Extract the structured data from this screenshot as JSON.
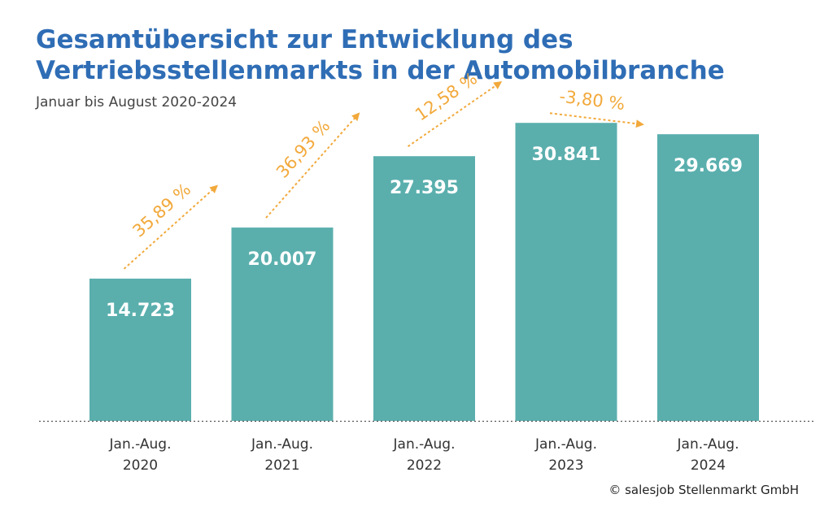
{
  "header": {
    "title_line1": "Gesamtübersicht zur Entwicklung des",
    "title_line2": "Vertriebsstellenmarkts in der Automobilbranche",
    "subtitle": "Januar bis August 2020-2024"
  },
  "footer": {
    "credit": "© salesjob Stellenmarkt GmbH"
  },
  "colors": {
    "title": "#2f6db5",
    "bar": "#5aafad",
    "arrow": "#f2a93b",
    "value_label": "#ffffff",
    "axis_text": "#333333"
  },
  "chart_data": {
    "type": "bar",
    "title": "Gesamtübersicht zur Entwicklung des Vertriebsstellenmarkts in der Automobilbranche",
    "subtitle": "Januar bis August 2020-2024",
    "xlabel": "",
    "ylabel": "",
    "grid": false,
    "legend": "none",
    "categories": [
      [
        "Jan.-Aug.",
        "2020"
      ],
      [
        "Jan.-Aug.",
        "2021"
      ],
      [
        "Jan.-Aug.",
        "2022"
      ],
      [
        "Jan.-Aug.",
        "2023"
      ],
      [
        "Jan.-Aug.",
        "2024"
      ]
    ],
    "values": [
      14723,
      20007,
      27395,
      30841,
      29669
    ],
    "value_labels": [
      "14.723",
      "20.007",
      "27.395",
      "30.841",
      "29.669"
    ],
    "changes": [
      {
        "from": 0,
        "to": 1,
        "label": "35,89 %"
      },
      {
        "from": 1,
        "to": 2,
        "label": "36,93 %"
      },
      {
        "from": 2,
        "to": 3,
        "label": "12,58 %"
      },
      {
        "from": 3,
        "to": 4,
        "label": "-3,80 %"
      }
    ],
    "ylim": [
      0,
      37000
    ]
  }
}
